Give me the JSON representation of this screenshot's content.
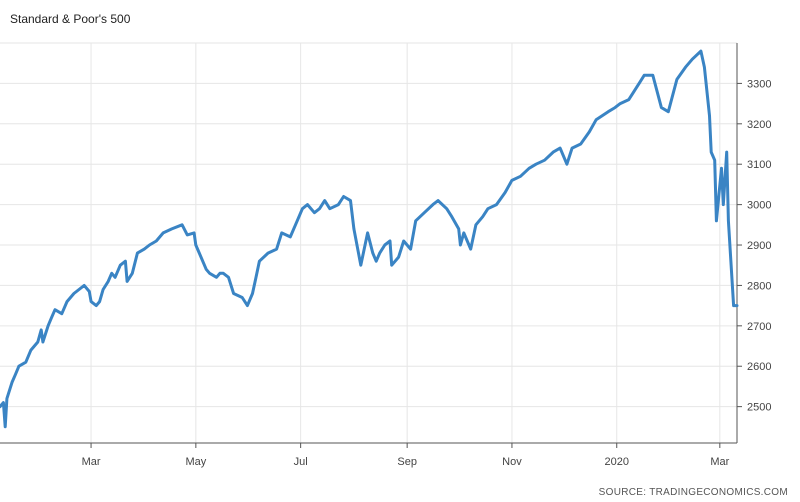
{
  "chart_data": {
    "type": "line",
    "title": "Standard & Poor's 500",
    "source": "SOURCE: TRADINGECONOMICS.COM",
    "xlabel": "",
    "ylabel": "",
    "ylim": [
      2410,
      3400
    ],
    "yticks": [
      2500,
      2600,
      2700,
      2800,
      2900,
      3000,
      3100,
      3200,
      3300
    ],
    "xlim": [
      "2019-01-07",
      "2020-03-11"
    ],
    "xticks": [
      {
        "date": "2019-03-01",
        "label": "Mar"
      },
      {
        "date": "2019-05-01",
        "label": "May"
      },
      {
        "date": "2019-07-01",
        "label": "Jul"
      },
      {
        "date": "2019-09-01",
        "label": "Sep"
      },
      {
        "date": "2019-11-01",
        "label": "Nov"
      },
      {
        "date": "2020-01-01",
        "label": "2020"
      },
      {
        "date": "2020-03-01",
        "label": "Mar"
      }
    ],
    "grid": true,
    "series_color": "#3a84c4",
    "series": [
      {
        "x": [
          "2019-01-07",
          "2019-01-09",
          "2019-01-10",
          "2019-01-11",
          "2019-01-14",
          "2019-01-16",
          "2019-01-18",
          "2019-01-22",
          "2019-01-25",
          "2019-01-29",
          "2019-01-31",
          "2019-02-01",
          "2019-02-04",
          "2019-02-06",
          "2019-02-08",
          "2019-02-12",
          "2019-02-15",
          "2019-02-19",
          "2019-02-22",
          "2019-02-25",
          "2019-02-28",
          "2019-03-01",
          "2019-03-04",
          "2019-03-06",
          "2019-03-08",
          "2019-03-11",
          "2019-03-13",
          "2019-03-15",
          "2019-03-18",
          "2019-03-21",
          "2019-03-22",
          "2019-03-25",
          "2019-03-28",
          "2019-04-01",
          "2019-04-04",
          "2019-04-08",
          "2019-04-12",
          "2019-04-17",
          "2019-04-23",
          "2019-04-26",
          "2019-04-30",
          "2019-05-01",
          "2019-05-03",
          "2019-05-07",
          "2019-05-09",
          "2019-05-13",
          "2019-05-15",
          "2019-05-17",
          "2019-05-20",
          "2019-05-23",
          "2019-05-28",
          "2019-05-31",
          "2019-06-03",
          "2019-06-05",
          "2019-06-07",
          "2019-06-12",
          "2019-06-17",
          "2019-06-20",
          "2019-06-25",
          "2019-06-28",
          "2019-07-02",
          "2019-07-05",
          "2019-07-09",
          "2019-07-12",
          "2019-07-15",
          "2019-07-18",
          "2019-07-23",
          "2019-07-26",
          "2019-07-30",
          "2019-08-01",
          "2019-08-05",
          "2019-08-07",
          "2019-08-09",
          "2019-08-12",
          "2019-08-14",
          "2019-08-16",
          "2019-08-19",
          "2019-08-22",
          "2019-08-23",
          "2019-08-27",
          "2019-08-30",
          "2019-09-03",
          "2019-09-06",
          "2019-09-11",
          "2019-09-16",
          "2019-09-19",
          "2019-09-24",
          "2019-09-27",
          "2019-10-01",
          "2019-10-02",
          "2019-10-04",
          "2019-10-08",
          "2019-10-11",
          "2019-10-15",
          "2019-10-18",
          "2019-10-23",
          "2019-10-28",
          "2019-11-01",
          "2019-11-06",
          "2019-11-11",
          "2019-11-15",
          "2019-11-20",
          "2019-11-25",
          "2019-11-29",
          "2019-12-03",
          "2019-12-06",
          "2019-12-11",
          "2019-12-16",
          "2019-12-20",
          "2019-12-27",
          "2019-12-31",
          "2020-01-03",
          "2020-01-08",
          "2020-01-14",
          "2020-01-17",
          "2020-01-22",
          "2020-01-27",
          "2020-01-31",
          "2020-02-05",
          "2020-02-10",
          "2020-02-14",
          "2020-02-19",
          "2020-02-21",
          "2020-02-24",
          "2020-02-25",
          "2020-02-27",
          "2020-02-28",
          "2020-03-02",
          "2020-03-03",
          "2020-03-05",
          "2020-03-06",
          "2020-03-09",
          "2020-03-11"
        ],
        "y": [
          2500,
          2510,
          2450,
          2520,
          2560,
          2580,
          2600,
          2610,
          2640,
          2660,
          2690,
          2660,
          2700,
          2720,
          2740,
          2730,
          2760,
          2780,
          2790,
          2800,
          2785,
          2760,
          2750,
          2760,
          2790,
          2810,
          2830,
          2820,
          2850,
          2860,
          2810,
          2830,
          2880,
          2890,
          2900,
          2910,
          2930,
          2940,
          2950,
          2925,
          2930,
          2900,
          2880,
          2840,
          2830,
          2820,
          2830,
          2830,
          2820,
          2780,
          2770,
          2750,
          2780,
          2820,
          2860,
          2880,
          2890,
          2930,
          2920,
          2950,
          2990,
          3000,
          2980,
          2990,
          3010,
          2990,
          3000,
          3020,
          3010,
          2940,
          2850,
          2890,
          2930,
          2880,
          2860,
          2880,
          2900,
          2910,
          2850,
          2870,
          2910,
          2890,
          2960,
          2980,
          3000,
          3010,
          2990,
          2970,
          2940,
          2900,
          2930,
          2890,
          2950,
          2970,
          2990,
          3000,
          3030,
          3060,
          3070,
          3090,
          3100,
          3110,
          3130,
          3140,
          3100,
          3140,
          3150,
          3180,
          3210,
          3230,
          3240,
          3250,
          3260,
          3300,
          3320,
          3320,
          3240,
          3230,
          3310,
          3340,
          3360,
          3380,
          3340,
          3220,
          3130,
          3110,
          2960,
          3090,
          3000,
          3130,
          2960,
          2750,
          2750
        ]
      }
    ]
  }
}
